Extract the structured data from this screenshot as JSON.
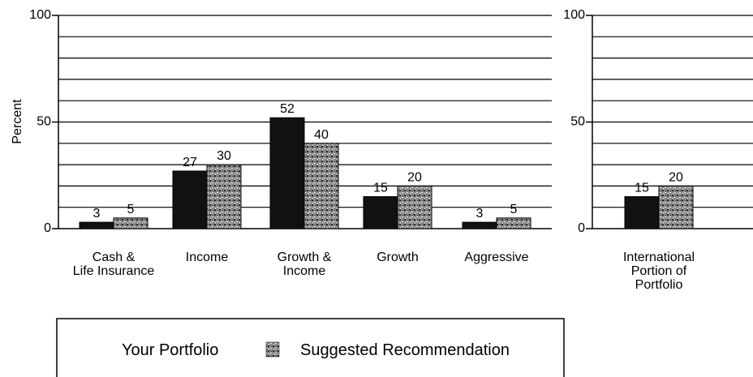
{
  "chart_data": [
    {
      "type": "bar",
      "y_label": "Percent",
      "categories": [
        "Cash &\nLife Insurance",
        "Income",
        "Growth &\nIncome",
        "Growth",
        "Aggressive"
      ],
      "series": [
        {
          "name": "Your Portfolio",
          "color": "#111111",
          "values": [
            3,
            27,
            52,
            15,
            3
          ]
        },
        {
          "name": "Suggested Recommendation",
          "color": "#8a8a8a",
          "values": [
            5,
            30,
            40,
            20,
            5
          ]
        }
      ],
      "ylim": [
        0,
        100
      ],
      "yticks": [
        0,
        50,
        100
      ],
      "grid_lines": [
        10,
        20,
        30,
        40,
        50,
        60,
        70,
        80,
        90,
        100
      ],
      "legend": "bottom"
    },
    {
      "type": "bar",
      "categories": [
        "International\nPortion of\nPortfolio"
      ],
      "series": [
        {
          "color": "#111111",
          "values": [
            15
          ]
        },
        {
          "color": "#8a8a8a",
          "values": [
            20
          ]
        }
      ],
      "ylim": [
        0,
        100
      ],
      "yticks": [
        0,
        50,
        100
      ],
      "grid_lines": [
        10,
        20,
        30,
        40,
        50,
        60,
        70,
        80,
        90,
        100
      ]
    }
  ]
}
